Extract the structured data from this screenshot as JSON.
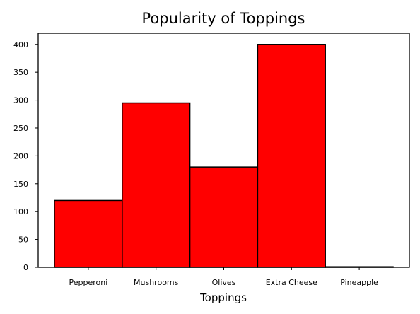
{
  "chart_data": {
    "type": "bar",
    "title": "Popularity of Toppings",
    "xlabel": "Toppings",
    "ylabel": "",
    "categories": [
      "Pepperoni",
      "Mushrooms",
      "Olives",
      "Extra Cheese",
      "Pineapple"
    ],
    "values": [
      120,
      295,
      180,
      400,
      1
    ],
    "yticks": [
      0,
      50,
      100,
      150,
      200,
      250,
      300,
      350,
      400
    ],
    "ylim": [
      0,
      420
    ],
    "grid": false,
    "legend": "none",
    "bar_color": "#ff0000",
    "edge_color": "#000000"
  }
}
